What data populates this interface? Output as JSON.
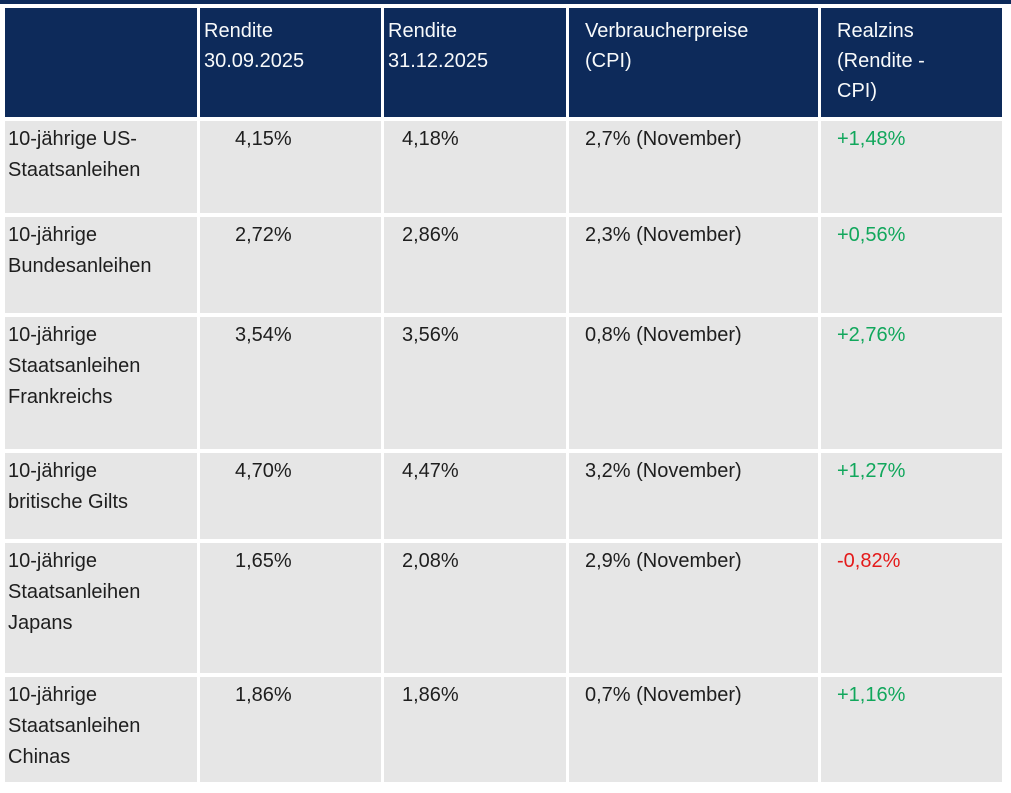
{
  "colors": {
    "header_bg": "#0d2a5a",
    "header_text": "#f8fafb",
    "row_bg": "#e6e6e6",
    "body_text": "#1e1e1e",
    "positive": "#11a75c",
    "negative": "#e41a1a",
    "background": "#ffffff"
  },
  "table": {
    "header": {
      "col1": "",
      "col2": "Rendite\n30.09.2025",
      "col3": "Rendite\n31.12.2025",
      "col4": "Verbraucherpreise\n(CPI)",
      "col5": "Realzins\n(Rendite -\nCPI)"
    },
    "rows": [
      {
        "label": "10-jährige US-\nStaatsanleihen",
        "rendite_30_09": "4,15%",
        "rendite_31_12": "4,18%",
        "cpi": "2,7% (November)",
        "realzins": "+1,48%",
        "realzins_sign": "positive"
      },
      {
        "label": "10-jährige\nBundesanleihen",
        "rendite_30_09": "2,72%",
        "rendite_31_12": "2,86%",
        "cpi": "2,3% (November)",
        "realzins": "+0,56%",
        "realzins_sign": "positive"
      },
      {
        "label": "10-jährige\nStaatsanleihen\nFrankreichs",
        "rendite_30_09": "3,54%",
        "rendite_31_12": "3,56%",
        "cpi": "0,8% (November)",
        "realzins": "+2,76%",
        "realzins_sign": "positive"
      },
      {
        "label": "10-jährige\nbritische Gilts",
        "rendite_30_09": "4,70%",
        "rendite_31_12": "4,47%",
        "cpi": "3,2% (November)",
        "realzins": "+1,27%",
        "realzins_sign": "positive"
      },
      {
        "label": "10-jährige\nStaatsanleihen\nJapans",
        "rendite_30_09": "1,65%",
        "rendite_31_12": "2,08%",
        "cpi": "2,9% (November)",
        "realzins": "-0,82%",
        "realzins_sign": "negative"
      },
      {
        "label": "10-jährige\nStaatsanleihen\nChinas",
        "rendite_30_09": "1,86%",
        "rendite_31_12": "1,86%",
        "cpi": "0,7% (November)",
        "realzins": "+1,16%",
        "realzins_sign": "positive"
      }
    ]
  },
  "chart_data": {
    "type": "table",
    "title": "",
    "columns": [
      "",
      "Rendite 30.09.2025",
      "Rendite 31.12.2025",
      "Verbraucherpreise (CPI)",
      "Realzins (Rendite - CPI)"
    ],
    "rows": [
      [
        "10-jährige US-Staatsanleihen",
        "4,15%",
        "4,18%",
        "2,7% (November)",
        "+1,48%"
      ],
      [
        "10-jährige Bundesanleihen",
        "2,72%",
        "2,86%",
        "2,3% (November)",
        "+0,56%"
      ],
      [
        "10-jährige Staatsanleihen Frankreichs",
        "3,54%",
        "3,56%",
        "0,8% (November)",
        "+2,76%"
      ],
      [
        "10-jährige britische Gilts",
        "4,70%",
        "4,47%",
        "3,2% (November)",
        "+1,27%"
      ],
      [
        "10-jährige Staatsanleihen Japans",
        "1,65%",
        "2,08%",
        "2,9% (November)",
        "-0,82%"
      ],
      [
        "10-jährige Staatsanleihen Chinas",
        "1,86%",
        "1,86%",
        "0,7% (November)",
        "+1,16%"
      ]
    ],
    "realzins_values_percent": [
      1.48,
      0.56,
      2.76,
      1.27,
      -0.82,
      1.16
    ]
  }
}
